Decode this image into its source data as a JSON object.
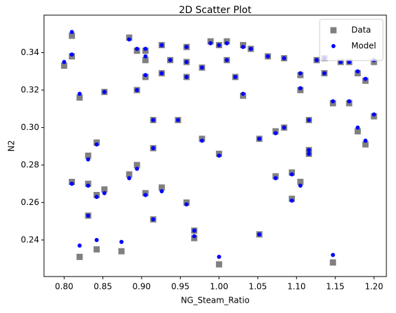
{
  "chart_data": {
    "type": "scatter",
    "title": "2D Scatter Plot",
    "x_label": "NG_Steam_Ratio",
    "y_label": "N2",
    "x": [
      0.8,
      0.81,
      0.81,
      0.81,
      0.82,
      0.82,
      0.831,
      0.831,
      0.831,
      0.842,
      0.842,
      0.842,
      0.852,
      0.852,
      0.874,
      0.884,
      0.884,
      0.894,
      0.894,
      0.894,
      0.905,
      0.905,
      0.905,
      0.905,
      0.915,
      0.915,
      0.915,
      0.926,
      0.926,
      0.926,
      0.937,
      0.947,
      0.958,
      0.958,
      0.958,
      0.958,
      0.968,
      0.968,
      0.978,
      0.978,
      0.989,
      1.0,
      1.0,
      1.0,
      1.01,
      1.01,
      1.021,
      1.031,
      1.031,
      1.041,
      1.052,
      1.052,
      1.063,
      1.073,
      1.073,
      1.084,
      1.084,
      1.094,
      1.094,
      1.105,
      1.105,
      1.105,
      1.116,
      1.116,
      1.116,
      1.126,
      1.136,
      1.136,
      1.147,
      1.147,
      1.157,
      1.168,
      1.168,
      1.179,
      1.179,
      1.189,
      1.189,
      1.2,
      1.2
    ],
    "series": [
      {
        "name": "Data",
        "color": "#808080",
        "marker": "square",
        "values": [
          0.333,
          0.349,
          0.338,
          0.271,
          0.316,
          0.231,
          0.285,
          0.27,
          0.253,
          0.292,
          0.264,
          0.235,
          0.319,
          0.267,
          0.234,
          0.348,
          0.275,
          0.341,
          0.32,
          0.28,
          0.341,
          0.336,
          0.327,
          0.265,
          0.304,
          0.289,
          0.251,
          0.344,
          0.329,
          0.268,
          0.336,
          0.304,
          0.343,
          0.335,
          0.327,
          0.26,
          0.245,
          0.241,
          0.332,
          0.294,
          0.346,
          0.344,
          0.286,
          0.227,
          0.346,
          0.336,
          0.327,
          0.344,
          0.317,
          0.342,
          0.294,
          0.243,
          0.338,
          0.298,
          0.274,
          0.337,
          0.3,
          0.276,
          0.262,
          0.328,
          0.32,
          0.271,
          0.304,
          0.288,
          0.286,
          0.336,
          0.337,
          0.329,
          0.313,
          0.228,
          0.335,
          0.335,
          0.313,
          0.329,
          0.298,
          0.325,
          0.291,
          0.335,
          0.306
        ]
      },
      {
        "name": "Model",
        "color": "#0000ff",
        "marker": "circle",
        "values": [
          0.335,
          0.351,
          0.339,
          0.27,
          0.318,
          0.237,
          0.283,
          0.269,
          0.253,
          0.291,
          0.263,
          0.24,
          0.319,
          0.265,
          0.239,
          0.347,
          0.273,
          0.342,
          0.32,
          0.278,
          0.342,
          0.338,
          0.328,
          0.264,
          0.304,
          0.289,
          0.251,
          0.344,
          0.329,
          0.266,
          0.336,
          0.304,
          0.343,
          0.335,
          0.327,
          0.259,
          0.245,
          0.242,
          0.332,
          0.293,
          0.345,
          0.344,
          0.285,
          0.231,
          0.345,
          0.336,
          0.327,
          0.343,
          0.318,
          0.342,
          0.294,
          0.243,
          0.338,
          0.297,
          0.273,
          0.337,
          0.3,
          0.275,
          0.261,
          0.329,
          0.321,
          0.269,
          0.304,
          0.288,
          0.286,
          0.336,
          0.337,
          0.329,
          0.314,
          0.232,
          0.335,
          0.335,
          0.314,
          0.33,
          0.3,
          0.326,
          0.293,
          0.336,
          0.307
        ]
      }
    ],
    "xlim": [
      0.774,
      1.216
    ],
    "ylim": [
      0.2205,
      0.36
    ],
    "xticks": [
      {
        "value": 0.8,
        "label": "0.80"
      },
      {
        "value": 0.85,
        "label": "0.85"
      },
      {
        "value": 0.9,
        "label": "0.90"
      },
      {
        "value": 0.95,
        "label": "0.95"
      },
      {
        "value": 1.0,
        "label": "1.00"
      },
      {
        "value": 1.05,
        "label": "1.05"
      },
      {
        "value": 1.1,
        "label": "1.10"
      },
      {
        "value": 1.15,
        "label": "1.15"
      },
      {
        "value": 1.2,
        "label": "1.20"
      }
    ],
    "yticks": [
      0.24,
      0.26,
      0.28,
      {
        "value": 0.3,
        "label": "0.30"
      },
      0.32,
      0.34
    ],
    "grid": false,
    "legend": "upper right"
  }
}
